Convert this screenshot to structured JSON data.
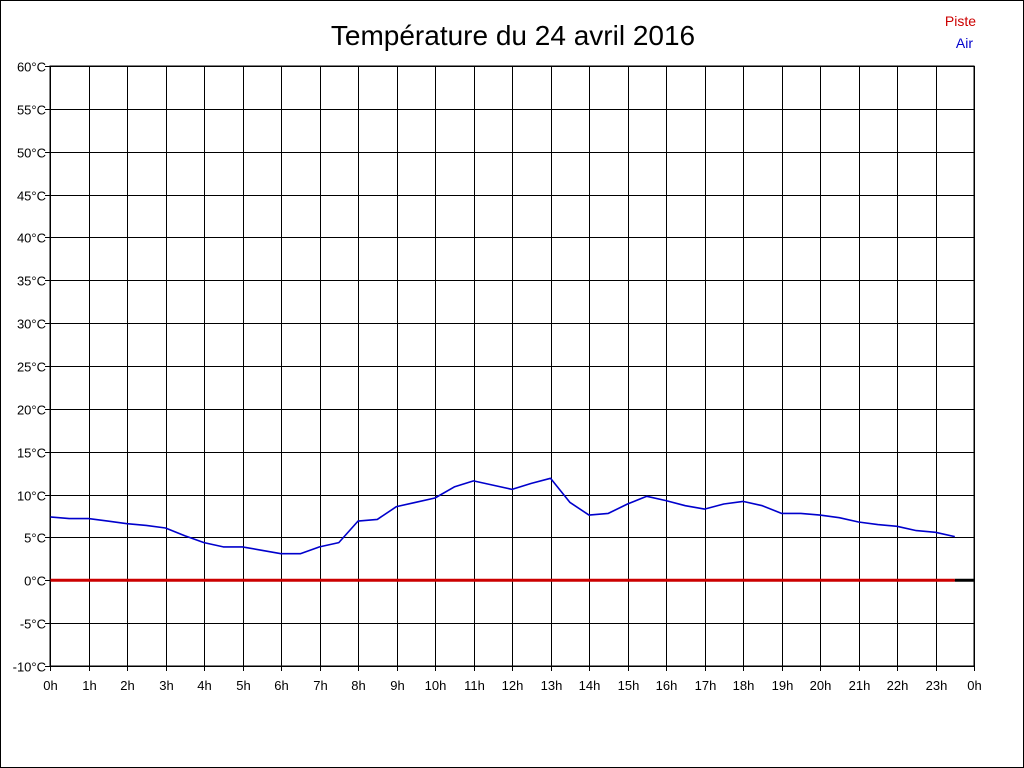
{
  "chart_data": {
    "type": "line",
    "title": "Température du 24 avril 2016",
    "legend": {
      "placement": "top-right",
      "entries": [
        {
          "name": "Piste",
          "color": "#cc0000"
        },
        {
          "name": "Air",
          "color": "#0000cc"
        }
      ]
    },
    "xlabel": "",
    "ylabel": "",
    "xlim": [
      0,
      24
    ],
    "ylim": [
      -10,
      60
    ],
    "grid": true,
    "x_ticks": [
      {
        "value": 0,
        "label": "0h"
      },
      {
        "value": 1,
        "label": "1h"
      },
      {
        "value": 2,
        "label": "2h"
      },
      {
        "value": 3,
        "label": "3h"
      },
      {
        "value": 4,
        "label": "4h"
      },
      {
        "value": 5,
        "label": "5h"
      },
      {
        "value": 6,
        "label": "6h"
      },
      {
        "value": 7,
        "label": "7h"
      },
      {
        "value": 8,
        "label": "8h"
      },
      {
        "value": 9,
        "label": "9h"
      },
      {
        "value": 10,
        "label": "10h"
      },
      {
        "value": 11,
        "label": "11h"
      },
      {
        "value": 12,
        "label": "12h"
      },
      {
        "value": 13,
        "label": "13h"
      },
      {
        "value": 14,
        "label": "14h"
      },
      {
        "value": 15,
        "label": "15h"
      },
      {
        "value": 16,
        "label": "16h"
      },
      {
        "value": 17,
        "label": "17h"
      },
      {
        "value": 18,
        "label": "18h"
      },
      {
        "value": 19,
        "label": "19h"
      },
      {
        "value": 20,
        "label": "20h"
      },
      {
        "value": 21,
        "label": "21h"
      },
      {
        "value": 22,
        "label": "22h"
      },
      {
        "value": 23,
        "label": "23h"
      },
      {
        "value": 24,
        "label": "0h"
      }
    ],
    "y_ticks": [
      {
        "value": 60,
        "label": "60°C"
      },
      {
        "value": 55,
        "label": "55°C"
      },
      {
        "value": 50,
        "label": "50°C"
      },
      {
        "value": 45,
        "label": "45°C"
      },
      {
        "value": 40,
        "label": "40°C"
      },
      {
        "value": 35,
        "label": "35°C"
      },
      {
        "value": 30,
        "label": "30°C"
      },
      {
        "value": 25,
        "label": "25°C"
      },
      {
        "value": 20,
        "label": "20°C"
      },
      {
        "value": 15,
        "label": "15°C"
      },
      {
        "value": 10,
        "label": "10°C"
      },
      {
        "value": 5,
        "label": "5°C"
      },
      {
        "value": 0,
        "label": "0°C"
      },
      {
        "value": -5,
        "label": "-5°C"
      },
      {
        "value": -10,
        "label": "-10°C"
      }
    ],
    "series": [
      {
        "name": "Piste",
        "color": "#cc0000",
        "x": [
          0,
          23.5
        ],
        "y": [
          0,
          0
        ]
      },
      {
        "name": "Air",
        "color": "#0000cc",
        "x": [
          0,
          0.5,
          1,
          1.5,
          2,
          2.5,
          3,
          3.5,
          4,
          4.5,
          5,
          5.5,
          6,
          6.5,
          7,
          7.5,
          8,
          8.5,
          9,
          9.5,
          10,
          10.5,
          11,
          11.5,
          12,
          12.5,
          13,
          13.5,
          14,
          14.5,
          15,
          15.5,
          16,
          16.5,
          17,
          17.5,
          18,
          18.5,
          19,
          19.5,
          20,
          20.5,
          21,
          21.5,
          22,
          22.5,
          23,
          23.5
        ],
        "y": [
          7.4,
          7.2,
          7.2,
          6.9,
          6.6,
          6.4,
          6.1,
          5.2,
          4.4,
          3.9,
          3.9,
          3.5,
          3.1,
          3.1,
          3.9,
          4.4,
          6.9,
          7.1,
          8.6,
          9.1,
          9.6,
          10.9,
          11.6,
          11.1,
          10.6,
          11.3,
          11.9,
          9.1,
          7.6,
          7.8,
          8.9,
          9.8,
          9.3,
          8.7,
          8.3,
          8.9,
          9.2,
          8.7,
          7.8,
          7.8,
          7.6,
          7.3,
          6.8,
          6.5,
          6.3,
          5.8,
          5.6,
          5.1
        ]
      }
    ]
  }
}
